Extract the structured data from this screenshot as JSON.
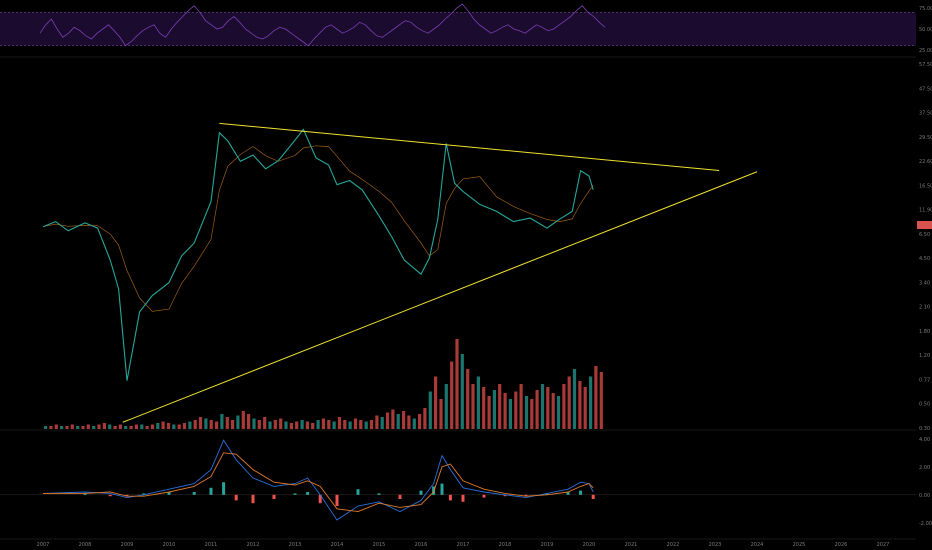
{
  "chart_data": [
    {
      "type": "line",
      "panel": "rsi",
      "y_ticks": [
        "75.00",
        "50.00",
        "25.00"
      ],
      "ylim": [
        20,
        80
      ],
      "overbought": 70,
      "oversold": 30,
      "series": [
        {
          "values": [
            45,
            55,
            62,
            50,
            40,
            45,
            52,
            48,
            42,
            38,
            45,
            50,
            55,
            48,
            40,
            30,
            35,
            42,
            48,
            52,
            55,
            45,
            40,
            50,
            58,
            65,
            72,
            78,
            70,
            60,
            55,
            50,
            52,
            60,
            65,
            58,
            50,
            45,
            40,
            38,
            42,
            48,
            52,
            50,
            45,
            40,
            35,
            30,
            38,
            45,
            52,
            55,
            50,
            45,
            48,
            52,
            58,
            55,
            48,
            42,
            40,
            45,
            50,
            55,
            60,
            58,
            52,
            48,
            45,
            50,
            55,
            62,
            68,
            75,
            80,
            72,
            62,
            55,
            50,
            45,
            48,
            52,
            55,
            50,
            48,
            45,
            50,
            55,
            52,
            48,
            50,
            55,
            60,
            65,
            72,
            78,
            70,
            65,
            58,
            52
          ]
        }
      ],
      "colors": {
        "line": "#7b3fb5",
        "band_fill": "#1b0b2e"
      }
    },
    {
      "type": "line",
      "panel": "price",
      "y_ticks": [
        "57.50",
        "47.50",
        "37.50",
        "29.50",
        "22.60",
        "16.50",
        "11.90",
        "6.50",
        "4.50",
        "3.40",
        "2.10",
        "1.80",
        "1.20",
        "0.77",
        "0.50",
        "0.30"
      ],
      "x_ticks": [
        "2007",
        "2008",
        "2009",
        "2010",
        "2011",
        "2012",
        "2013",
        "2014",
        "2015",
        "2016",
        "2017",
        "2018",
        "2019",
        "2020",
        "2021",
        "2022",
        "2023",
        "2024",
        "2025",
        "2026",
        "2027"
      ],
      "x_range": [
        2007,
        2027
      ],
      "ylim": [
        0.28,
        57.5
      ],
      "y_scale": "log",
      "last_price_tag": "",
      "series": [
        {
          "x": [
            2007.0,
            2007.3,
            2007.6,
            2008.0,
            2008.3,
            2008.6,
            2008.8,
            2009.0,
            2009.3,
            2009.6,
            2010.0,
            2010.3,
            2010.6,
            2011.0,
            2011.2,
            2011.4,
            2011.7,
            2012.0,
            2012.3,
            2012.6,
            2013.0,
            2013.2,
            2013.5,
            2013.8,
            2014.0,
            2014.3,
            2014.6,
            2015.0,
            2015.3,
            2015.6,
            2016.0,
            2016.2,
            2016.4,
            2016.6,
            2016.8,
            2017.0,
            2017.4,
            2017.8,
            2018.2,
            2018.6,
            2019.0,
            2019.3,
            2019.6,
            2019.8,
            2020.0,
            2020.1
          ],
          "values": [
            5.2,
            5.6,
            4.9,
            5.5,
            5.1,
            3.2,
            2.1,
            0.55,
            1.5,
            1.9,
            2.3,
            3.4,
            4.1,
            7.5,
            20.5,
            18.2,
            13.5,
            14.8,
            12.1,
            13.6,
            18.4,
            21.5,
            14.2,
            12.8,
            9.6,
            10.2,
            8.9,
            6.1,
            4.5,
            3.2,
            2.6,
            3.3,
            5.8,
            17.5,
            9.8,
            8.7,
            7.2,
            6.5,
            5.6,
            5.9,
            5.1,
            5.8,
            6.5,
            11.8,
            10.9,
            8.9
          ]
        }
      ],
      "trendlines": [
        {
          "x": [
            2011.2,
            2023.1
          ],
          "values": [
            23.5,
            11.8
          ]
        },
        {
          "x": [
            2008.9,
            2024.0
          ],
          "values": [
            0.3,
            11.6
          ]
        }
      ],
      "colors": {
        "trendline": "#f0e130",
        "up": "#26a69a",
        "down": "#ef5350",
        "cloud_up": "#1f3a22",
        "cloud_down": "#3a1618",
        "ma": "#c4761b"
      }
    },
    {
      "type": "bar",
      "panel": "volume",
      "x_range": [
        2007,
        2027
      ],
      "values": [
        2,
        2,
        3,
        2,
        2,
        3,
        2,
        2,
        3,
        2,
        3,
        4,
        3,
        2,
        3,
        2,
        2,
        3,
        3,
        2,
        3,
        4,
        5,
        4,
        3,
        3,
        4,
        5,
        6,
        8,
        7,
        6,
        5,
        10,
        8,
        6,
        9,
        12,
        10,
        7,
        6,
        8,
        5,
        6,
        7,
        5,
        4,
        5,
        6,
        5,
        4,
        6,
        7,
        6,
        5,
        8,
        6,
        5,
        7,
        6,
        5,
        6,
        9,
        8,
        11,
        13,
        10,
        12,
        9,
        7,
        10,
        14,
        25,
        35,
        20,
        30,
        45,
        60,
        50,
        40,
        30,
        35,
        28,
        22,
        26,
        30,
        24,
        20,
        25,
        30,
        22,
        20,
        26,
        30,
        28,
        24,
        22,
        30,
        35,
        40,
        32,
        28,
        35,
        42,
        38
      ]
    },
    {
      "type": "line",
      "panel": "macd",
      "y_ticks": [
        "4.00",
        "2.00",
        "0.00",
        "-2.00"
      ],
      "ylim": [
        -2.8,
        4.2
      ],
      "x_range": [
        2007,
        2027
      ],
      "series": [
        {
          "x": [
            2007.0,
            2008.0,
            2008.6,
            2009.0,
            2009.4,
            2010.0,
            2010.6,
            2011.0,
            2011.3,
            2011.6,
            2012.0,
            2012.5,
            2013.0,
            2013.3,
            2013.6,
            2014.0,
            2014.5,
            2015.0,
            2015.5,
            2016.0,
            2016.3,
            2016.5,
            2016.7,
            2017.0,
            2017.5,
            2018.0,
            2018.5,
            2019.0,
            2019.5,
            2019.8,
            2020.0,
            2020.1
          ],
          "values": [
            0.1,
            0.2,
            0.1,
            -0.2,
            0.0,
            0.4,
            0.8,
            1.8,
            3.9,
            2.5,
            1.2,
            0.6,
            0.8,
            1.2,
            0.0,
            -1.8,
            -0.8,
            -0.5,
            -1.2,
            -0.4,
            0.8,
            2.8,
            1.8,
            0.5,
            0.2,
            0.0,
            -0.2,
            0.1,
            0.4,
            0.9,
            0.8,
            0.2
          ]
        },
        {
          "x": [
            2007.0,
            2008.0,
            2008.6,
            2009.0,
            2009.4,
            2010.0,
            2010.6,
            2011.0,
            2011.3,
            2011.6,
            2012.0,
            2012.5,
            2013.0,
            2013.3,
            2013.6,
            2014.0,
            2014.5,
            2015.0,
            2015.5,
            2016.0,
            2016.3,
            2016.5,
            2016.7,
            2017.0,
            2017.5,
            2018.0,
            2018.5,
            2019.0,
            2019.5,
            2019.8,
            2020.0,
            2020.1
          ],
          "values": [
            0.1,
            0.1,
            0.2,
            -0.1,
            -0.1,
            0.2,
            0.6,
            1.3,
            3.0,
            2.9,
            1.8,
            0.9,
            0.7,
            1.0,
            0.6,
            -1.0,
            -1.2,
            -0.6,
            -0.9,
            -0.7,
            0.2,
            2.0,
            2.2,
            1.0,
            0.4,
            0.1,
            -0.1,
            0.0,
            0.2,
            0.6,
            0.8,
            0.5
          ]
        }
      ],
      "colors": {
        "macd": "#2a6fdb",
        "signal": "#e07b2a",
        "hist_up": "#26a69a",
        "hist_down": "#ef5350"
      }
    }
  ]
}
